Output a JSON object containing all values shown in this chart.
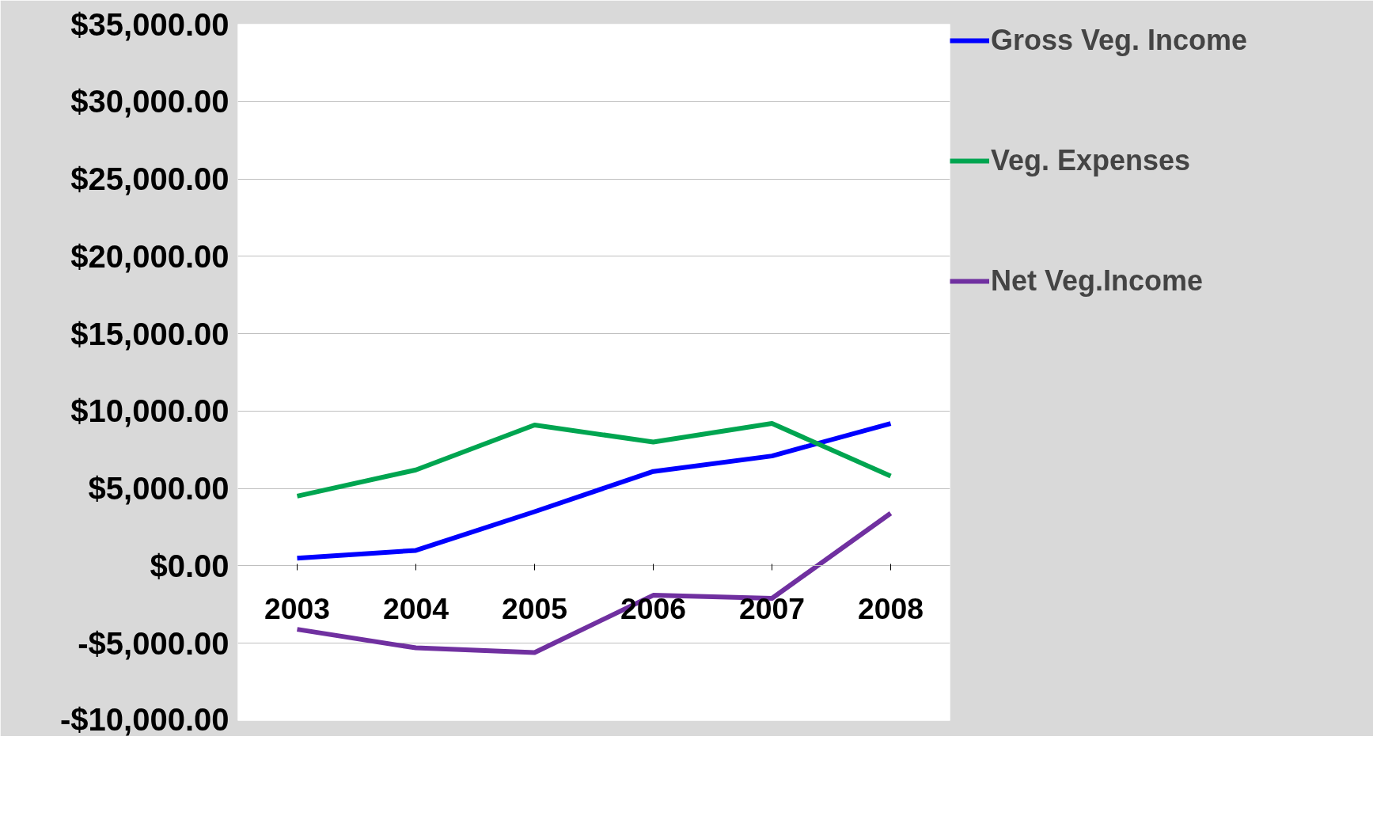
{
  "chart_data": {
    "type": "line",
    "categories": [
      "2003",
      "2004",
      "2005",
      "2006",
      "2007",
      "2008"
    ],
    "series": [
      {
        "name": "Gross Veg. Income",
        "color": "#0000ff",
        "values": [
          500,
          1000,
          3500,
          6100,
          7100,
          9200
        ]
      },
      {
        "name": "Veg. Expenses",
        "color": "#00a550",
        "values": [
          4500,
          6200,
          9100,
          8000,
          9200,
          5800
        ]
      },
      {
        "name": "Net Veg.Income",
        "color": "#7030a0",
        "values": [
          -4100,
          -5300,
          -5600,
          -1900,
          -2100,
          3400
        ]
      }
    ],
    "ylim": [
      -10000,
      35000
    ],
    "yticks": [
      {
        "value": -10000,
        "label": "-$10,000.00"
      },
      {
        "value": -5000,
        "label": "-$5,000.00"
      },
      {
        "value": 0,
        "label": "$0.00"
      },
      {
        "value": 5000,
        "label": "$5,000.00"
      },
      {
        "value": 10000,
        "label": "$10,000.00"
      },
      {
        "value": 15000,
        "label": "$15,000.00"
      },
      {
        "value": 20000,
        "label": "$20,000.00"
      },
      {
        "value": 25000,
        "label": "$25,000.00"
      },
      {
        "value": 30000,
        "label": "$30,000.00"
      },
      {
        "value": 35000,
        "label": "$35,000.00"
      }
    ],
    "grid": "y",
    "legend": "right",
    "marker": "none",
    "line_style": "solid"
  }
}
